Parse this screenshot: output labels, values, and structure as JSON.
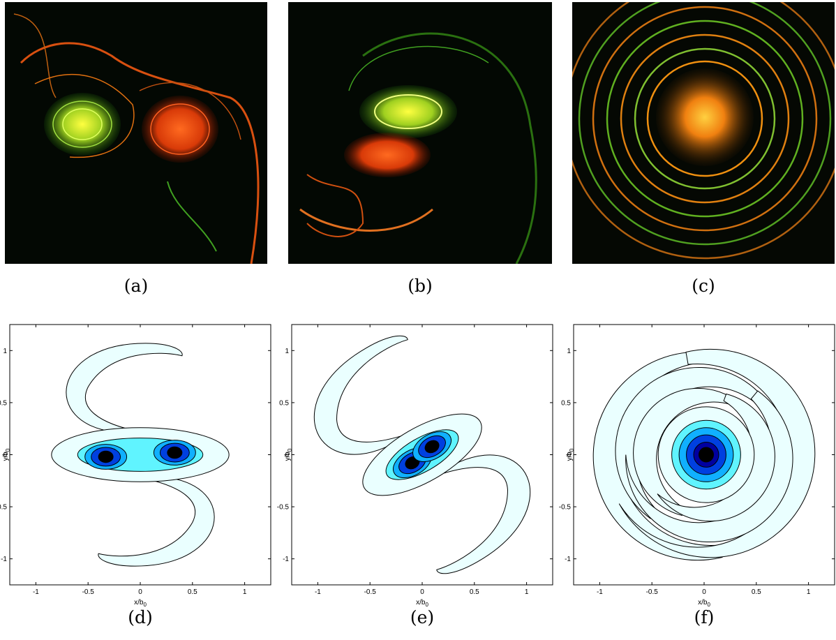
{
  "figure": {
    "photos": [
      {
        "label": "(a)"
      },
      {
        "label": "(b)"
      },
      {
        "label": "(c)"
      }
    ],
    "plots": [
      {
        "label": "(d)",
        "xlim": [
          -1.25,
          1.25
        ],
        "ylim": [
          -1.25,
          1.25
        ],
        "xticks": [
          -1,
          -0.5,
          0,
          0.5,
          1
        ],
        "yticks": [
          -1,
          -0.5,
          0,
          0.5,
          1
        ],
        "xlabel": {
          "text": "x/b",
          "sub": "0"
        },
        "ylabel": {
          "text": "y/b",
          "sub": "0"
        }
      },
      {
        "label": "(e)",
        "xlim": [
          -1.25,
          1.25
        ],
        "ylim": [
          -1.25,
          1.25
        ],
        "xticks": [
          -1,
          -0.5,
          0,
          0.5,
          1
        ],
        "yticks": [
          -1,
          -0.5,
          0,
          0.5,
          1
        ],
        "xlabel": {
          "text": "x/b",
          "sub": "0"
        },
        "ylabel": {
          "text": "y/b",
          "sub": "0"
        }
      },
      {
        "label": "(f)",
        "xlim": [
          -1.25,
          1.25
        ],
        "ylim": [
          -1.25,
          1.25
        ],
        "xticks": [
          -1,
          -0.5,
          0,
          0.5,
          1
        ],
        "yticks": [
          -1,
          -0.5,
          0,
          0.5,
          1
        ],
        "xlabel": {
          "text": "x/b",
          "sub": "0"
        },
        "ylabel": {
          "text": "y/b",
          "sub": "0"
        }
      }
    ]
  }
}
